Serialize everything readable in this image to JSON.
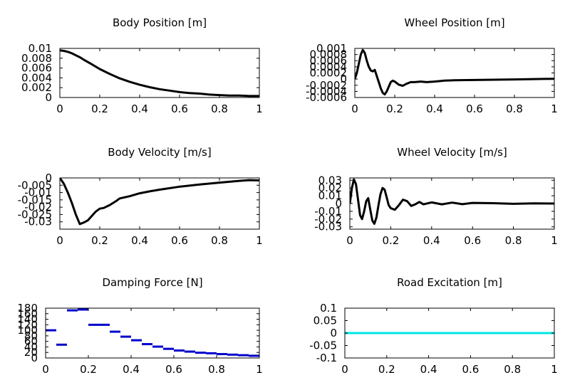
{
  "chart_data": [
    {
      "type": "line",
      "title": "Body Position [m]",
      "xlim": [
        0,
        1
      ],
      "ylim": [
        0,
        0.01
      ],
      "xticks": [
        0,
        0.2,
        0.4,
        0.6,
        0.8,
        1
      ],
      "xtick_labels": [
        "0",
        "0.2",
        "0.4",
        "0.6",
        "0.8",
        "1"
      ],
      "yticks": [
        0,
        0.002,
        0.004,
        0.006,
        0.008,
        0.01
      ],
      "ytick_labels": [
        "0",
        "0.002",
        "0.004",
        "0.006",
        "0.008",
        "0.01"
      ],
      "series": [
        {
          "name": "body position",
          "color": "#000000",
          "x": [
            0,
            0.02,
            0.04,
            0.06,
            0.08,
            0.1,
            0.12,
            0.15,
            0.2,
            0.25,
            0.3,
            0.35,
            0.4,
            0.45,
            0.5,
            0.55,
            0.6,
            0.65,
            0.7,
            0.75,
            0.8,
            0.85,
            0.9,
            0.95,
            1.0
          ],
          "y": [
            0.0096,
            0.0095,
            0.0093,
            0.009,
            0.0086,
            0.0082,
            0.0077,
            0.007,
            0.0058,
            0.0048,
            0.0039,
            0.0032,
            0.0026,
            0.0021,
            0.0017,
            0.0014,
            0.0011,
            0.0009,
            0.0008,
            0.0006,
            0.0005,
            0.0004,
            0.0004,
            0.0003,
            0.0003
          ]
        }
      ]
    },
    {
      "type": "line",
      "title": "Wheel Position [m]",
      "xlim": [
        0,
        1
      ],
      "ylim": [
        -0.0006,
        0.001
      ],
      "xticks": [
        0,
        0.2,
        0.4,
        0.6,
        0.8,
        1
      ],
      "xtick_labels": [
        "0",
        "0.2",
        "0.4",
        "0.6",
        "0.8",
        "1"
      ],
      "yticks": [
        -0.0006,
        -0.0004,
        -0.0002,
        0,
        0.0002,
        0.0004,
        0.0006,
        0.0008,
        0.001
      ],
      "ytick_labels": [
        "-0.0006",
        "-0.0004",
        "-0.0002",
        "0",
        "0.0002",
        "0.0004",
        "0.0006",
        "0.0008",
        "0.001"
      ],
      "series": [
        {
          "name": "wheel position",
          "color": "#000000",
          "x": [
            0,
            0.01,
            0.02,
            0.03,
            0.04,
            0.05,
            0.06,
            0.07,
            0.08,
            0.09,
            0.1,
            0.11,
            0.12,
            0.13,
            0.14,
            0.15,
            0.16,
            0.17,
            0.18,
            0.19,
            0.2,
            0.22,
            0.24,
            0.26,
            0.28,
            0.3,
            0.33,
            0.36,
            0.4,
            0.45,
            0.5,
            0.6,
            0.7,
            0.8,
            0.9,
            1.0
          ],
          "y": [
            0,
            0.0002,
            0.0005,
            0.0008,
            0.00095,
            0.00085,
            0.0006,
            0.0004,
            0.00028,
            0.00025,
            0.0003,
            0.0001,
            -0.0001,
            -0.0003,
            -0.00045,
            -0.0005,
            -0.0004,
            -0.00025,
            -0.0001,
            -5e-05,
            -8e-05,
            -0.00018,
            -0.00022,
            -0.00015,
            -0.0001,
            -0.0001,
            -8e-05,
            -0.0001,
            -8e-05,
            -5e-05,
            -4e-05,
            -3e-05,
            -2e-05,
            -1e-05,
            0,
            1e-05
          ]
        }
      ]
    },
    {
      "type": "line",
      "title": "Body Velocity [m/s]",
      "xlim": [
        0,
        1
      ],
      "ylim": [
        -0.035,
        0
      ],
      "xticks": [
        0,
        0.2,
        0.4,
        0.6,
        0.8,
        1
      ],
      "xtick_labels": [
        "0",
        "0.2",
        "0.4",
        "0.6",
        "0.8",
        "1"
      ],
      "yticks": [
        -0.03,
        -0.025,
        -0.02,
        -0.015,
        -0.01,
        -0.005,
        0
      ],
      "ytick_labels": [
        "-0.03",
        "-0.025",
        "-0.02",
        "-0.015",
        "-0.01",
        "-0.005",
        "0"
      ],
      "series": [
        {
          "name": "body velocity",
          "color": "#000000",
          "x": [
            0,
            0.02,
            0.04,
            0.06,
            0.08,
            0.1,
            0.12,
            0.14,
            0.16,
            0.18,
            0.2,
            0.22,
            0.25,
            0.28,
            0.3,
            0.35,
            0.4,
            0.45,
            0.5,
            0.6,
            0.7,
            0.8,
            0.9,
            0.95,
            1.0
          ],
          "y": [
            0,
            -0.004,
            -0.01,
            -0.017,
            -0.025,
            -0.0315,
            -0.0305,
            -0.029,
            -0.026,
            -0.023,
            -0.021,
            -0.0205,
            -0.0185,
            -0.016,
            -0.014,
            -0.0125,
            -0.0105,
            -0.0092,
            -0.008,
            -0.006,
            -0.0045,
            -0.0032,
            -0.002,
            -0.0015,
            -0.0017
          ]
        }
      ]
    },
    {
      "type": "line",
      "title": "Wheel Velocity [m/s]",
      "xlim": [
        0,
        1
      ],
      "ylim": [
        -0.033,
        0.033
      ],
      "xticks": [
        0,
        0.2,
        0.4,
        0.6,
        0.8,
        1
      ],
      "xtick_labels": [
        "0",
        "0.2",
        "0.4",
        "0.6",
        "0.8",
        "1"
      ],
      "yticks": [
        -0.03,
        -0.02,
        -0.01,
        0,
        0.01,
        0.02,
        0.03
      ],
      "ytick_labels": [
        "-0.03",
        "-0.02",
        "-0.01",
        "0",
        "0.01",
        "0.02",
        "0.03"
      ],
      "series": [
        {
          "name": "wheel velocity",
          "color": "#000000",
          "x": [
            0,
            0.01,
            0.02,
            0.03,
            0.04,
            0.05,
            0.06,
            0.07,
            0.08,
            0.09,
            0.1,
            0.11,
            0.12,
            0.13,
            0.14,
            0.15,
            0.16,
            0.17,
            0.18,
            0.19,
            0.2,
            0.22,
            0.24,
            0.26,
            0.28,
            0.3,
            0.32,
            0.34,
            0.36,
            0.4,
            0.45,
            0.5,
            0.55,
            0.6,
            0.7,
            0.8,
            0.9,
            1.0
          ],
          "y": [
            0,
            0.02,
            0.031,
            0.025,
            0.005,
            -0.015,
            -0.02,
            -0.01,
            0.003,
            0.007,
            -0.008,
            -0.022,
            -0.026,
            -0.018,
            -0.002,
            0.012,
            0.02,
            0.018,
            0.008,
            -0.002,
            -0.006,
            -0.008,
            -0.002,
            0.005,
            0.003,
            -0.003,
            -0.001,
            0.002,
            -0.001,
            0.0015,
            -0.001,
            0.0012,
            -0.0008,
            0.0008,
            0.0005,
            -0.0004,
            0.0003,
            0
          ]
        }
      ]
    },
    {
      "type": "step",
      "title": "Damping Force [N]",
      "xlim": [
        0,
        1
      ],
      "ylim": [
        0,
        180
      ],
      "xticks": [
        0,
        0.2,
        0.4,
        0.6,
        0.8,
        1
      ],
      "xtick_labels": [
        "0",
        "0.2",
        "0.4",
        "0.6",
        "0.8",
        "1"
      ],
      "yticks": [
        0,
        20,
        40,
        60,
        80,
        100,
        120,
        140,
        160,
        180
      ],
      "ytick_labels": [
        "0",
        "20",
        "40",
        "60",
        "80",
        "100",
        "120",
        "140",
        "160",
        "180"
      ],
      "series": [
        {
          "name": "damping force",
          "color": "#0000cc",
          "segments": [
            [
              0.0,
              0.05,
              100
            ],
            [
              0.05,
              0.1,
              48
            ],
            [
              0.1,
              0.15,
              172
            ],
            [
              0.15,
              0.2,
              175
            ],
            [
              0.2,
              0.3,
              120
            ],
            [
              0.3,
              0.35,
              95
            ],
            [
              0.35,
              0.4,
              77
            ],
            [
              0.4,
              0.45,
              64
            ],
            [
              0.45,
              0.5,
              50
            ],
            [
              0.5,
              0.55,
              41
            ],
            [
              0.55,
              0.6,
              33
            ],
            [
              0.6,
              0.65,
              27
            ],
            [
              0.65,
              0.7,
              23
            ],
            [
              0.7,
              0.75,
              19
            ],
            [
              0.75,
              0.8,
              17
            ],
            [
              0.8,
              0.85,
              14
            ],
            [
              0.85,
              0.9,
              12
            ],
            [
              0.9,
              0.95,
              10
            ],
            [
              0.95,
              1.0,
              8
            ]
          ]
        }
      ]
    },
    {
      "type": "line",
      "title": "Road Excitation [m]",
      "xlim": [
        0,
        1
      ],
      "ylim": [
        -0.1,
        0.1
      ],
      "xticks": [
        0,
        0.2,
        0.4,
        0.6,
        0.8,
        1
      ],
      "xtick_labels": [
        "0",
        "0.2",
        "0.4",
        "0.6",
        "0.8",
        "1"
      ],
      "yticks": [
        -0.1,
        -0.05,
        0,
        0.05,
        0.1
      ],
      "ytick_labels": [
        "-0.1",
        "-0.05",
        "0",
        "0.05",
        "0.1"
      ],
      "series": [
        {
          "name": "road excitation",
          "color": "#00e5e5",
          "x": [
            0,
            1
          ],
          "y": [
            0,
            0
          ]
        }
      ]
    }
  ]
}
